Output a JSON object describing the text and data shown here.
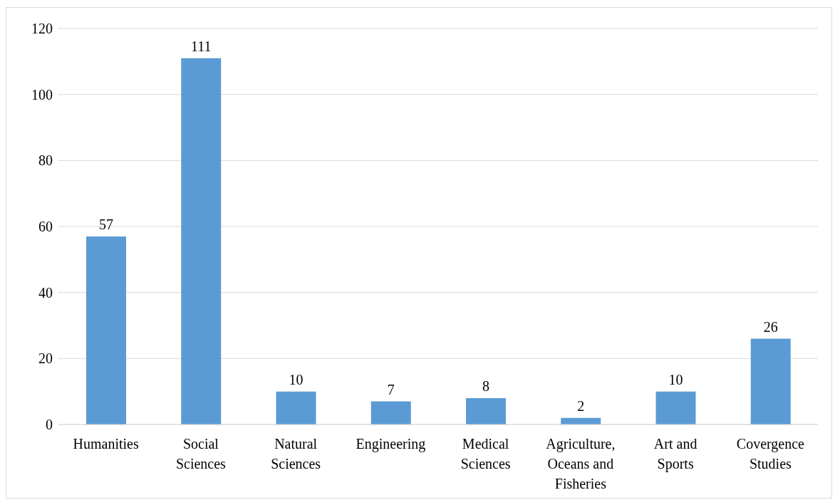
{
  "chart_data": {
    "type": "bar",
    "categories": [
      "Humanities",
      "Social Sciences",
      "Natural Sciences",
      "Engineering",
      "Medical Sciences",
      "Agriculture, Oceans and Fisheries",
      "Art and Sports",
      "Covergence Studies"
    ],
    "values": [
      57,
      111,
      10,
      7,
      8,
      2,
      10,
      26
    ],
    "color": "#5b9bd5",
    "ylim": [
      0,
      120
    ],
    "yticks": [
      0,
      20,
      40,
      60,
      80,
      100,
      120
    ],
    "grid": "y",
    "data_labels": true,
    "legend": false
  }
}
